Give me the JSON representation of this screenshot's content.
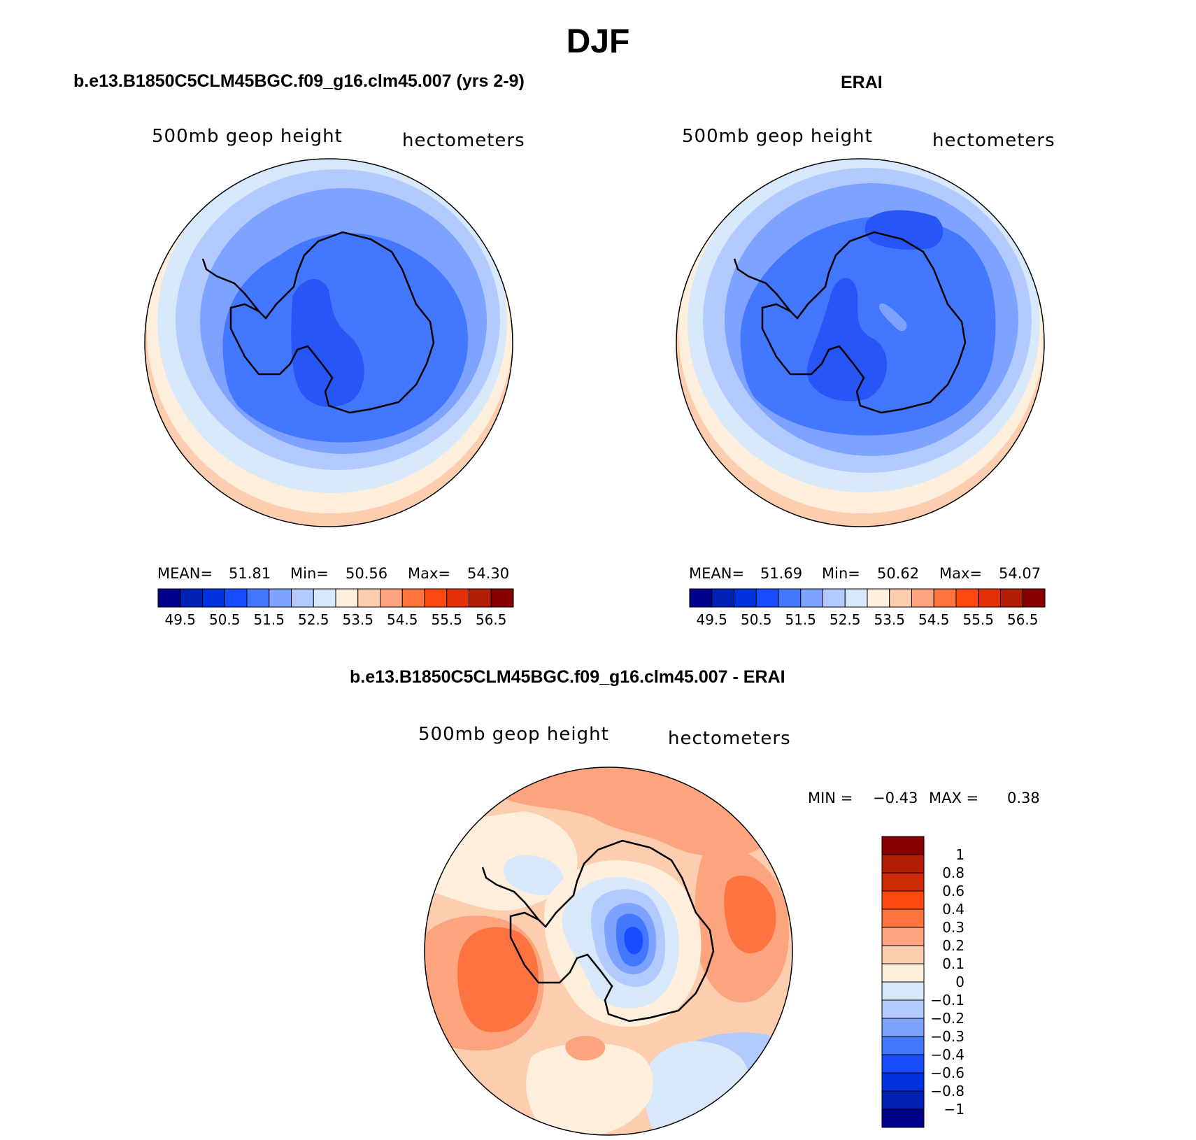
{
  "figure": {
    "title": "DJF"
  },
  "panels": [
    {
      "title": "b.e13.B1850C5CLM45BGC.f09_g16.clm45.007 (yrs 2-9)",
      "left_label": "500mb geop height",
      "right_label": "hectometers",
      "mean_label": "MEAN=",
      "mean": "51.81",
      "min_label": "Min=",
      "min": "50.56",
      "max_label": "Max=",
      "max": "54.30"
    },
    {
      "title": "ERAI",
      "left_label": "500mb geop height",
      "right_label": "hectometers",
      "mean_label": "MEAN=",
      "mean": "51.69",
      "min_label": "Min=",
      "min": "50.62",
      "max_label": "Max=",
      "max": "54.07"
    },
    {
      "title": "b.e13.B1850C5CLM45BGC.f09_g16.clm45.007 - ERAI",
      "left_label": "500mb geop height",
      "right_label": "hectometers",
      "min_label": "MIN =",
      "min": "−0.43",
      "max_label": "MAX =",
      "max": "0.38"
    }
  ],
  "colorbar_abs": {
    "colors": [
      "#00008b",
      "#0022b4",
      "#0033dd",
      "#1a4cff",
      "#4477ff",
      "#7da2ff",
      "#b3caff",
      "#d8e8fb",
      "#feeedc",
      "#fdcdb0",
      "#fca47e",
      "#fd7440",
      "#fe4a10",
      "#e43008",
      "#b51e06",
      "#870000"
    ],
    "labels": [
      "49.5",
      "50.5",
      "51.5",
      "52.5",
      "53.5",
      "54.5",
      "55.5",
      "56.5"
    ]
  },
  "colorbar_diff": {
    "colors": [
      "#870000",
      "#b51e06",
      "#cc2a08",
      "#fe4a10",
      "#fd7440",
      "#fca47e",
      "#fdcdb0",
      "#feeedc",
      "#d8e8fb",
      "#b3caff",
      "#7da2ff",
      "#4477ff",
      "#1a4cff",
      "#0033dd",
      "#0022b4",
      "#00008b"
    ],
    "labels": [
      "1",
      "0.8",
      "0.6",
      "0.4",
      "0.3",
      "0.2",
      "0.1",
      "0",
      "−0.1",
      "−0.2",
      "−0.3",
      "−0.4",
      "−0.6",
      "−0.8",
      "−1"
    ]
  },
  "map_colors": {
    "c49": "#0022b4",
    "c50": "#1a4cff",
    "c50b": "#2855f5",
    "c51": "#4477ff",
    "c51b": "#7da2ff",
    "c52": "#b3caff",
    "c52b": "#d8e8fb",
    "c53": "#feeedc",
    "c53b": "#fdcdb0",
    "c54": "#fca47e",
    "d03": "#fd7440",
    "d02": "#fca47e",
    "d01": "#fdcdb0",
    "d00": "#feeedc",
    "dm1": "#d8e8fb",
    "dm2": "#b3caff",
    "dm3": "#7da2ff",
    "dm4": "#4477ff",
    "dm5": "#1a4cff"
  }
}
